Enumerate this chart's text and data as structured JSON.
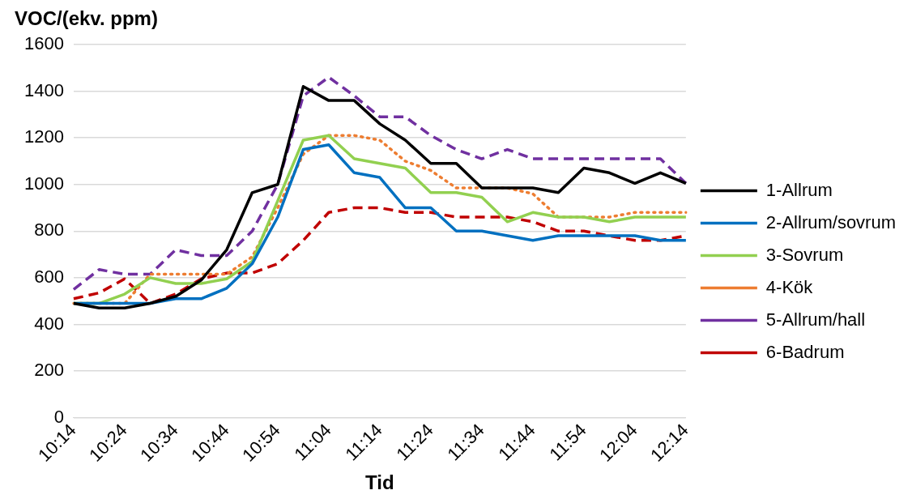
{
  "chart_data": {
    "type": "line",
    "ylabel": "VOC/(ekv. ppm)",
    "xlabel": "Tid",
    "categories": [
      "10:14",
      null,
      "10:24",
      null,
      "10:34",
      null,
      "10:44",
      null,
      "10:54",
      null,
      "11:04",
      null,
      "11:14",
      null,
      "11:24",
      null,
      "11:34",
      null,
      "11:44",
      null,
      "11:54",
      null,
      "12:04",
      null,
      "12:14"
    ],
    "ylim": [
      0,
      1600
    ],
    "yticks": [
      0,
      200,
      400,
      600,
      800,
      1000,
      1200,
      1400,
      1600
    ],
    "grid": "y",
    "legend": "right",
    "marker": "none",
    "series": [
      {
        "name": "1-Allrum",
        "color": "#000000",
        "line_style": "solid",
        "values": [
          490,
          470,
          470,
          490,
          520,
          590,
          720,
          965,
          1000,
          1420,
          1360,
          1360,
          1260,
          1190,
          1090,
          1090,
          985,
          985,
          985,
          965,
          1070,
          1050,
          1005,
          1050,
          1005
        ]
      },
      {
        "name": "2-Allrum/sovrum",
        "color": "#0070c0",
        "line_style": "solid",
        "values": [
          490,
          490,
          490,
          490,
          510,
          510,
          555,
          660,
          860,
          1150,
          1170,
          1050,
          1030,
          900,
          900,
          800,
          800,
          780,
          760,
          780,
          780,
          780,
          780,
          760,
          760
        ]
      },
      {
        "name": "3-Sovrum",
        "color": "#92d050",
        "line_style": "solid",
        "values": [
          490,
          490,
          530,
          600,
          575,
          575,
          595,
          670,
          930,
          1190,
          1210,
          1110,
          1090,
          1070,
          965,
          965,
          945,
          840,
          880,
          860,
          860,
          840,
          860,
          860,
          860
        ]
      },
      {
        "name": "4-Kök",
        "color": "#ed7d31",
        "line_style": "dotted",
        "values": [
          490,
          490,
          490,
          615,
          615,
          615,
          615,
          690,
          900,
          1130,
          1210,
          1210,
          1190,
          1100,
          1060,
          985,
          985,
          985,
          960,
          860,
          860,
          860,
          880,
          880,
          880
        ]
      },
      {
        "name": "5-Allrum/hall",
        "color": "#7030a0",
        "line_style": "dashed",
        "values": [
          550,
          635,
          615,
          615,
          720,
          695,
          695,
          800,
          1000,
          1380,
          1460,
          1380,
          1290,
          1290,
          1210,
          1150,
          1110,
          1150,
          1110,
          1110,
          1110,
          1110,
          1110,
          1110,
          1005
        ]
      },
      {
        "name": "6-Badrum",
        "color": "#c00000",
        "line_style": "dashed",
        "values": [
          510,
          535,
          595,
          490,
          530,
          595,
          620,
          620,
          660,
          760,
          880,
          900,
          900,
          880,
          880,
          860,
          860,
          860,
          840,
          800,
          800,
          780,
          760,
          760,
          780
        ]
      }
    ]
  }
}
